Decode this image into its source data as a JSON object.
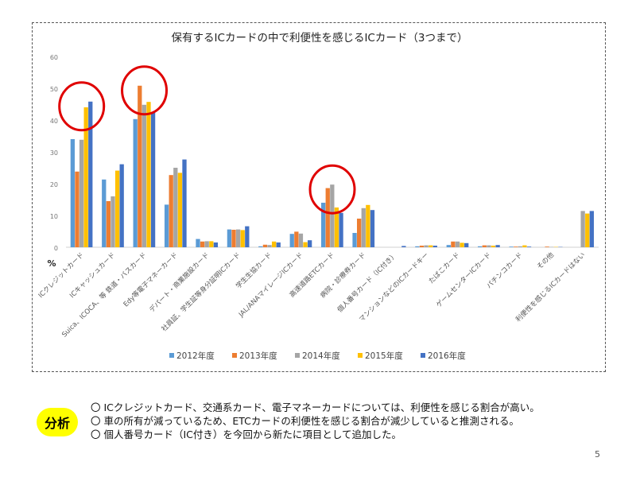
{
  "chart_data": {
    "type": "bar",
    "title": "保有するICカードの中で利便性を感じるICカード（3つまで）",
    "ylabel": "%",
    "ylim": [
      0,
      60
    ],
    "yticks": [
      0,
      10,
      20,
      30,
      40,
      50,
      60
    ],
    "grid": false,
    "legend_position": "bottom",
    "categories": [
      "ICクレジットカード",
      "ICキャッシュカード",
      "Suica、ICOCA、等 鉄道・バスカード",
      "Edy等電子マネーカード",
      "デパート・商業施設カード",
      "社員証、学生証等身分証明ICカード",
      "学生生協カード",
      "JAL/ANAマイレージICカード",
      "高速道路ETCカード",
      "病院・診療券カード",
      "個人番号カード（IC付き）",
      "マンションなどのICカードキー",
      "たばこカード",
      "ゲームセンターICカード",
      "パチンコカード",
      "その他",
      "利便性を感じるICカードはない"
    ],
    "series": [
      {
        "name": "2012年度",
        "color": "#5b9bd5",
        "values": [
          34.0,
          21.3,
          40.3,
          13.4,
          2.6,
          5.6,
          0.3,
          4.2,
          14.0,
          4.5,
          null,
          0.3,
          0.7,
          0.3,
          0.2,
          0.0,
          0.0
        ]
      },
      {
        "name": "2013年度",
        "color": "#ed7d31",
        "values": [
          23.8,
          14.5,
          50.8,
          22.7,
          1.8,
          5.5,
          0.8,
          4.9,
          18.6,
          9.0,
          null,
          0.5,
          1.8,
          0.6,
          0.2,
          0.2,
          0.0
        ]
      },
      {
        "name": "2014年度",
        "color": "#a5a5a5",
        "values": [
          33.8,
          16.0,
          44.8,
          25.0,
          1.9,
          5.6,
          0.7,
          4.3,
          19.7,
          12.3,
          null,
          0.6,
          1.8,
          0.6,
          0.3,
          0.1,
          11.4
        ]
      },
      {
        "name": "2015年度",
        "color": "#ffc000",
        "values": [
          44.0,
          24.1,
          45.7,
          23.4,
          1.9,
          5.4,
          1.8,
          1.6,
          12.5,
          13.3,
          null,
          0.6,
          1.4,
          0.5,
          0.6,
          0.1,
          10.6
        ]
      },
      {
        "name": "2016年度",
        "color": "#4472c4",
        "values": [
          45.8,
          26.1,
          42.3,
          27.6,
          1.5,
          6.6,
          1.5,
          2.2,
          10.8,
          11.7,
          0.4,
          0.5,
          1.3,
          0.7,
          0.2,
          0.1,
          11.4
        ]
      }
    ],
    "annotations": [
      {
        "category_index": 0,
        "shape": "circle",
        "color": "#e00000"
      },
      {
        "category_index": 2,
        "shape": "circle",
        "color": "#e00000"
      },
      {
        "category_index": 8,
        "shape": "circle",
        "color": "#e00000"
      }
    ]
  },
  "analysis": {
    "badge": "分析",
    "bullet": "〇",
    "items": [
      "ICクレジットカード、交通系カード、電子マネーカードについては、利便性を感じる割合が高い。",
      "車の所有が減っているため、ETCカードの利便性を感じる割合が減少していると推測される。",
      "個人番号カード（IC付き）を今回から新たに項目として追加した。"
    ]
  },
  "page_number": "5"
}
